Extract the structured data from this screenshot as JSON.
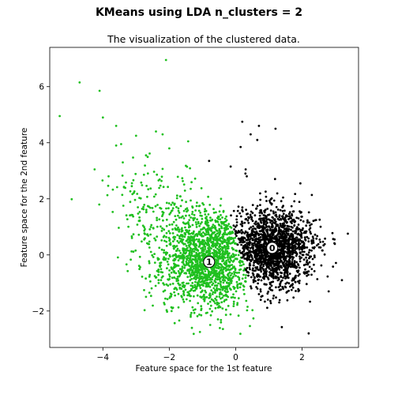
{
  "figure": {
    "suptitle": "KMeans using LDA n_clusters = 2"
  },
  "chart_data": {
    "type": "scatter",
    "title": "The visualization of the clustered data.",
    "xlabel": "Feature space for the 1st feature",
    "ylabel": "Feature space for the 2nd feature",
    "xlim": [
      -5.6,
      3.7
    ],
    "ylim": [
      -3.3,
      7.4
    ],
    "xticks": [
      -4,
      -2,
      0,
      2
    ],
    "yticks": [
      -2,
      0,
      2,
      4,
      6
    ],
    "xtick_labels": [
      "−4",
      "−2",
      "0",
      "2"
    ],
    "ytick_labels": [
      "−2",
      "0",
      "2",
      "4",
      "6"
    ],
    "grid": false,
    "series": [
      {
        "color": "#1fc01f",
        "center": [
          -0.8,
          -0.25
        ],
        "center_label": "1",
        "count": 1800,
        "spread": [
          0.75,
          0.85
        ],
        "outliers": [
          [
            -5.3,
            4.95
          ],
          [
            -4.7,
            6.15
          ],
          [
            -4.1,
            5.85
          ],
          [
            -4.0,
            4.9
          ],
          [
            -2.1,
            6.95
          ],
          [
            -4.25,
            3.05
          ],
          [
            -3.45,
            3.95
          ],
          [
            -3.6,
            3.9
          ],
          [
            -2.4,
            4.4
          ],
          [
            -2.2,
            4.3
          ],
          [
            -3.6,
            4.6
          ],
          [
            -3.4,
            3.3
          ],
          [
            -2.0,
            3.8
          ],
          [
            -2.7,
            3.55
          ],
          [
            -3.0,
            4.25
          ]
        ]
      },
      {
        "color": "#000000",
        "center": [
          1.1,
          0.25
        ],
        "center_label": "0",
        "count": 1700,
        "spread": [
          0.62,
          0.7
        ],
        "outliers": [
          [
            0.2,
            4.75
          ],
          [
            0.7,
            4.6
          ],
          [
            1.2,
            4.5
          ],
          [
            0.65,
            4.1
          ],
          [
            0.45,
            4.3
          ],
          [
            -0.8,
            3.35
          ],
          [
            2.2,
            -2.8
          ],
          [
            0.15,
            3.85
          ],
          [
            0.3,
            3.05
          ],
          [
            3.2,
            -0.9
          ],
          [
            2.8,
            -1.3
          ],
          [
            -0.15,
            3.15
          ],
          [
            1.95,
            2.55
          ]
        ]
      }
    ]
  }
}
